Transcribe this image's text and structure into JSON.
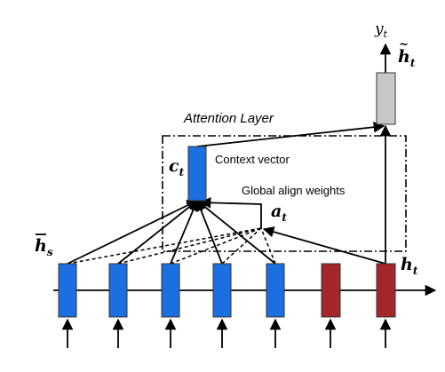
{
  "layer_title": "Attention Layer",
  "context_vector_label": "Context vector",
  "align_weights_label": "Global align weights",
  "symbols": {
    "output": "y",
    "output_sub": "t",
    "attn_hidden": "h",
    "attn_hidden_sub": "t",
    "context": "c",
    "context_sub": "t",
    "align": "a",
    "align_sub": "t",
    "source_hidden": "h",
    "source_hidden_sub": "s",
    "target_hidden": "h",
    "target_hidden_sub": "t"
  },
  "colors": {
    "encoder": "#1b6fe0",
    "decoder": "#a3262b",
    "attentional": "#c8c8c8",
    "context": "#1b6fe0",
    "ink": "#000000"
  }
}
